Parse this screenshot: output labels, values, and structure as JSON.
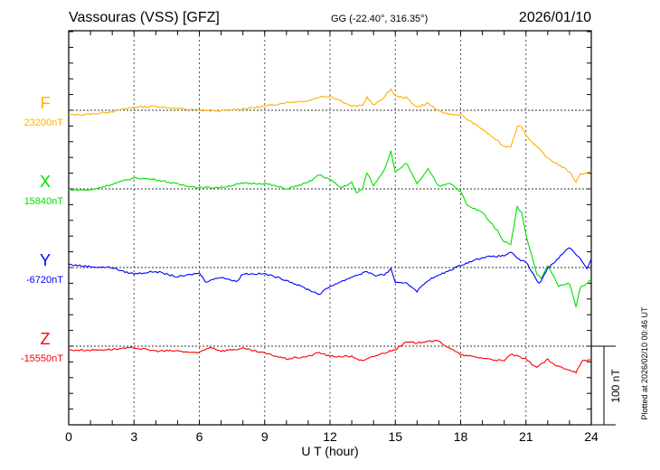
{
  "chart_data": {
    "type": "line",
    "title": "Vassouras (VSS)  [GFZ]",
    "subtitle": "GG (-22.40°, 316.35°)",
    "date": "2026/01/10",
    "xlabel": "U T (hour)",
    "xlim": [
      0,
      24
    ],
    "xticks": [
      "0",
      "3",
      "6",
      "9",
      "12",
      "15",
      "18",
      "21",
      "24"
    ],
    "scale_bar_label": "100 nT",
    "scale_bar_nT": 100,
    "tick_step_nT": 20,
    "plotted_note": "Plotted at 2026/02/10 00:46 UT",
    "grid": true,
    "series": [
      {
        "name": "F",
        "baseline_label": "23200nT",
        "color": "#ffb000",
        "points": [
          [
            0,
            -6
          ],
          [
            1,
            -5
          ],
          [
            2,
            -1.5
          ],
          [
            3,
            4
          ],
          [
            4,
            5
          ],
          [
            5,
            2
          ],
          [
            6,
            0
          ],
          [
            7,
            -1
          ],
          [
            8,
            2
          ],
          [
            9,
            5
          ],
          [
            10,
            10
          ],
          [
            11,
            12
          ],
          [
            11.5,
            17
          ],
          [
            12,
            18
          ],
          [
            12.5,
            12
          ],
          [
            13,
            5
          ],
          [
            13.5,
            6
          ],
          [
            13.7,
            17
          ],
          [
            14,
            6
          ],
          [
            14.5,
            17
          ],
          [
            14.8,
            27
          ],
          [
            15,
            18
          ],
          [
            15.5,
            16
          ],
          [
            16,
            4
          ],
          [
            16.5,
            9
          ],
          [
            17,
            -1.5
          ],
          [
            17.5,
            -5
          ],
          [
            18,
            -6
          ],
          [
            19,
            -24
          ],
          [
            20,
            -46
          ],
          [
            20.3,
            -46
          ],
          [
            20.6,
            -21
          ],
          [
            20.8,
            -20
          ],
          [
            21,
            -32
          ],
          [
            22,
            -61
          ],
          [
            22.3,
            -66
          ],
          [
            23,
            -78
          ],
          [
            23.3,
            -91
          ],
          [
            23.5,
            -81
          ],
          [
            24,
            -78
          ]
        ]
      },
      {
        "name": "X",
        "baseline_label": "15840nT",
        "color": "#00e000",
        "points": [
          [
            0,
            -1
          ],
          [
            1,
            -1.5
          ],
          [
            2,
            6
          ],
          [
            3,
            14
          ],
          [
            4,
            12
          ],
          [
            5,
            6
          ],
          [
            6,
            1.5
          ],
          [
            7,
            2
          ],
          [
            8,
            7
          ],
          [
            9,
            7
          ],
          [
            10,
            0
          ],
          [
            11,
            8
          ],
          [
            11.5,
            18
          ],
          [
            12,
            12
          ],
          [
            12.5,
            1.5
          ],
          [
            13,
            8
          ],
          [
            13.2,
            -5
          ],
          [
            13.5,
            0
          ],
          [
            13.7,
            21
          ],
          [
            14,
            4
          ],
          [
            14.5,
            25
          ],
          [
            14.8,
            48
          ],
          [
            15,
            21
          ],
          [
            15.5,
            33
          ],
          [
            16,
            6
          ],
          [
            16.5,
            25
          ],
          [
            17,
            3
          ],
          [
            17.5,
            8
          ],
          [
            18,
            -3.5
          ],
          [
            18.3,
            -21
          ],
          [
            19,
            -30
          ],
          [
            19.3,
            -40
          ],
          [
            19.6,
            -50
          ],
          [
            20,
            -67
          ],
          [
            20.3,
            -70
          ],
          [
            20.6,
            -23
          ],
          [
            20.8,
            -30
          ],
          [
            21,
            -59
          ],
          [
            21.5,
            -108
          ],
          [
            21.7,
            -114
          ],
          [
            22,
            -97
          ],
          [
            22.5,
            -124
          ],
          [
            23,
            -120
          ],
          [
            23.3,
            -150
          ],
          [
            23.5,
            -125
          ],
          [
            24,
            -116
          ]
        ]
      },
      {
        "name": "Y",
        "baseline_label": "-6720nT",
        "color": "#0000ff",
        "points": [
          [
            0,
            4
          ],
          [
            1,
            1
          ],
          [
            2,
            0
          ],
          [
            2.5,
            -5
          ],
          [
            3,
            -8
          ],
          [
            4,
            -5
          ],
          [
            5,
            -12
          ],
          [
            6,
            -7
          ],
          [
            6.3,
            -18
          ],
          [
            7,
            -12
          ],
          [
            7.7,
            -18
          ],
          [
            8,
            -8
          ],
          [
            9,
            -8
          ],
          [
            10,
            -16
          ],
          [
            11,
            -28
          ],
          [
            11.5,
            -34
          ],
          [
            12,
            -24
          ],
          [
            13,
            -12
          ],
          [
            13.7,
            -5
          ],
          [
            14,
            -10
          ],
          [
            14.5,
            -9
          ],
          [
            14.8,
            -2
          ],
          [
            15,
            -20
          ],
          [
            15.5,
            -19
          ],
          [
            16,
            -30
          ],
          [
            16.5,
            -16
          ],
          [
            17,
            -10
          ],
          [
            18,
            3
          ],
          [
            19,
            13
          ],
          [
            20,
            15
          ],
          [
            20.3,
            20
          ],
          [
            20.6,
            11
          ],
          [
            21,
            7
          ],
          [
            21.6,
            -21
          ],
          [
            22,
            -1
          ],
          [
            23,
            26
          ],
          [
            23.5,
            11
          ],
          [
            23.8,
            -1
          ],
          [
            24,
            11
          ]
        ]
      },
      {
        "name": "Z",
        "baseline_label": "-15550nT",
        "color": "#ff0000",
        "points": [
          [
            0,
            -5
          ],
          [
            1,
            -5
          ],
          [
            2,
            -4
          ],
          [
            3,
            -2
          ],
          [
            4,
            -6
          ],
          [
            5,
            -6
          ],
          [
            5.9,
            -9
          ],
          [
            6.5,
            -1
          ],
          [
            7,
            -6
          ],
          [
            8,
            -3
          ],
          [
            9,
            -9
          ],
          [
            10,
            -16
          ],
          [
            11,
            -13
          ],
          [
            11.5,
            -8
          ],
          [
            12,
            -13
          ],
          [
            13,
            -13
          ],
          [
            13.5,
            -19
          ],
          [
            14,
            -13
          ],
          [
            15,
            -4
          ],
          [
            15.5,
            5
          ],
          [
            16,
            4
          ],
          [
            16.5,
            7
          ],
          [
            17,
            6
          ],
          [
            18,
            -11
          ],
          [
            19,
            -15
          ],
          [
            20,
            -19
          ],
          [
            20.3,
            -10
          ],
          [
            21,
            -17
          ],
          [
            21.5,
            -27
          ],
          [
            22,
            -17
          ],
          [
            22.3,
            -24
          ],
          [
            23,
            -30
          ],
          [
            23.3,
            -33
          ],
          [
            23.6,
            -19
          ],
          [
            24,
            -17
          ]
        ]
      }
    ]
  }
}
